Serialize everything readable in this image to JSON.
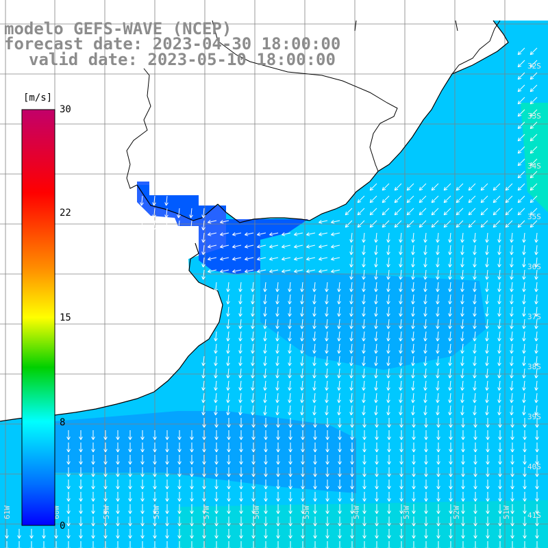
{
  "title": {
    "model": "modelo GEFS-WAVE (NCEP)",
    "forecast": "forecast date: 2023-04-30 18:00:00",
    "valid": "valid date: 2023-05-10 18:00:00"
  },
  "colorbar": {
    "unit": "[m/s]",
    "ticks": [
      "30",
      "22",
      "15",
      "8",
      "0"
    ],
    "colors": [
      "#c2006a",
      "#ff0000",
      "#ff8c00",
      "#ffff00",
      "#00d000",
      "#00ffff",
      "#0070ff",
      "#0000ff"
    ]
  },
  "map": {
    "ocean_color_primary": "#00c8ff",
    "ocean_color_dark": "#0048ff",
    "ocean_color_green": "#00f0b0",
    "land_color": "#ffffff",
    "coast_color": "#000000",
    "grid_color": "#808080",
    "arrow_color": "#ffffff",
    "lat_labels": [
      "32S",
      "33S",
      "34S",
      "35S",
      "36S",
      "37S",
      "38S",
      "39S",
      "40S",
      "41S"
    ],
    "lon_labels": [
      "61W",
      "60W",
      "59W",
      "58W",
      "57W",
      "56W",
      "55W",
      "54W",
      "53W",
      "52W",
      "51W"
    ]
  }
}
